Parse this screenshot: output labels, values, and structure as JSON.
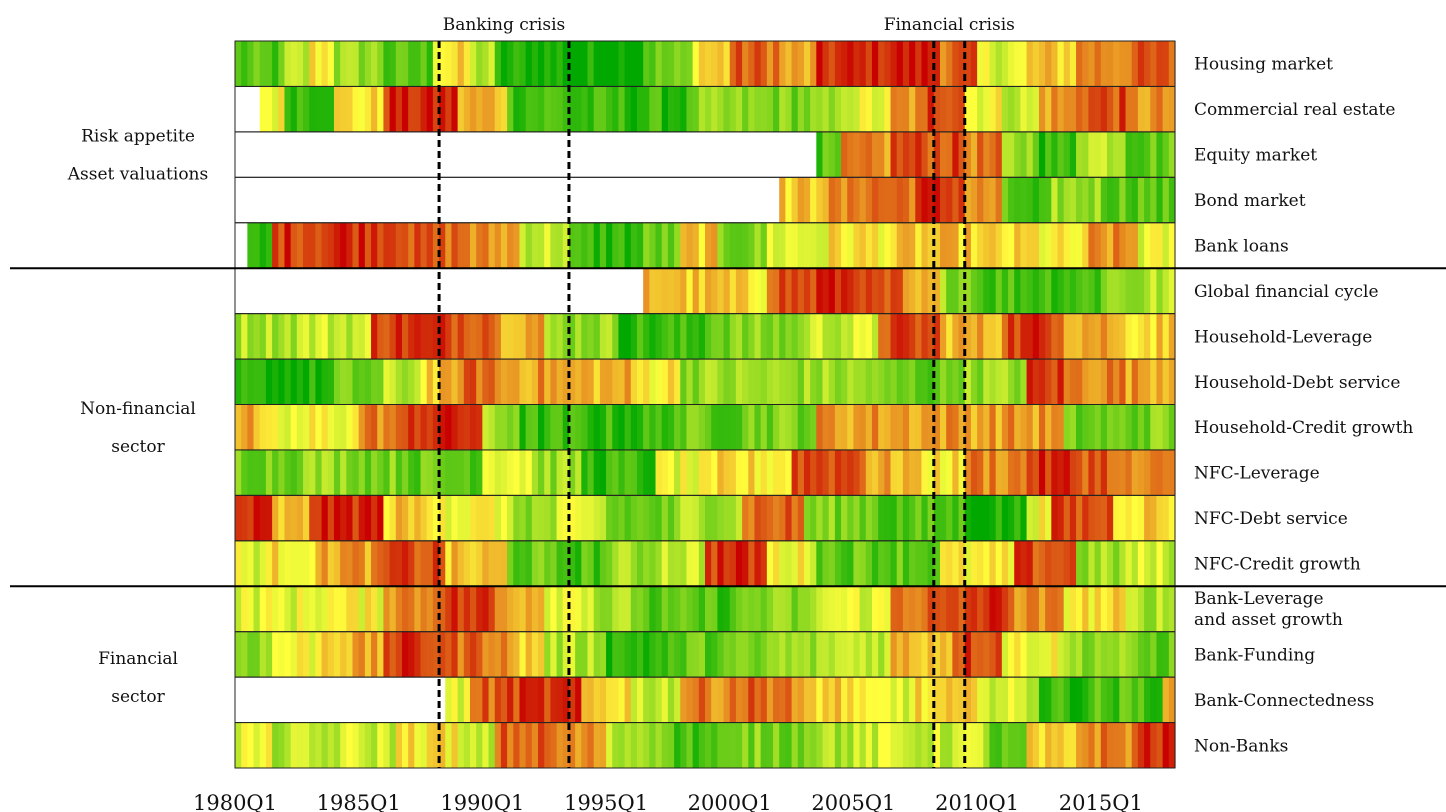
{
  "chart_data": {
    "type": "heatmap",
    "x": {
      "start_quarter": "1980Q1",
      "end_quarter": "2017Q4",
      "tick_labels": [
        "1980Q1",
        "1985Q1",
        "1990Q1",
        "1995Q1",
        "2000Q1",
        "2005Q1",
        "2010Q1",
        "2015Q1"
      ]
    },
    "crises": [
      {
        "label": "Banking crisis",
        "start": "1988Q2",
        "end": "1993Q3"
      },
      {
        "label": "Financial crisis",
        "start": "2008Q2",
        "end": "2009Q3"
      }
    ],
    "groups": [
      {
        "labels": [
          "Risk appetite",
          "Asset valuations"
        ],
        "rows": [
          0,
          1,
          2,
          3,
          4
        ]
      },
      {
        "labels": [
          "Non-financial",
          "sector"
        ],
        "rows": [
          5,
          6,
          7,
          8,
          9,
          10,
          11
        ]
      },
      {
        "labels": [
          "Financial",
          "sector"
        ],
        "rows": [
          12,
          13,
          14,
          15
        ]
      }
    ],
    "color_scale": {
      "low": "#00a800",
      "mid": "#ffff3c",
      "high": "#c80000"
    },
    "rows": [
      {
        "label": "Housing market",
        "data_start": "1980Q1",
        "segments": [
          [
            8,
            0.15
          ],
          [
            4,
            0.35
          ],
          [
            4,
            0.55
          ],
          [
            8,
            0.3
          ],
          [
            8,
            0.15
          ],
          [
            6,
            0.55
          ],
          [
            4,
            0.35
          ],
          [
            8,
            0.05
          ],
          [
            4,
            0.05
          ],
          [
            12,
            0.02
          ],
          [
            8,
            0.2
          ],
          [
            6,
            0.6
          ],
          [
            8,
            0.8
          ],
          [
            6,
            0.65
          ],
          [
            8,
            0.9
          ],
          [
            12,
            0.95
          ],
          [
            6,
            0.8
          ],
          [
            8,
            0.45
          ],
          [
            8,
            0.6
          ],
          [
            8,
            0.75
          ],
          [
            8,
            0.8
          ]
        ]
      },
      {
        "label": "Commercial real estate",
        "data_start": "1981Q1",
        "segments": [
          [
            4,
            0.5
          ],
          [
            8,
            0.15
          ],
          [
            8,
            0.55
          ],
          [
            12,
            0.92
          ],
          [
            8,
            0.65
          ],
          [
            10,
            0.15
          ],
          [
            8,
            0.1
          ],
          [
            12,
            0.1
          ],
          [
            10,
            0.25
          ],
          [
            14,
            0.25
          ],
          [
            8,
            0.45
          ],
          [
            6,
            0.7
          ],
          [
            6,
            0.9
          ],
          [
            6,
            0.5
          ],
          [
            6,
            0.4
          ],
          [
            6,
            0.7
          ],
          [
            8,
            0.85
          ],
          [
            8,
            0.7
          ],
          [
            8,
            0.6
          ],
          [
            8,
            0.55
          ]
        ]
      },
      {
        "label": "Equity market",
        "data_start": "2003Q3",
        "segments": [
          [
            4,
            0.15
          ],
          [
            8,
            0.7
          ],
          [
            12,
            0.85
          ],
          [
            6,
            0.75
          ],
          [
            6,
            0.3
          ],
          [
            6,
            0.1
          ],
          [
            8,
            0.4
          ],
          [
            8,
            0.2
          ],
          [
            8,
            0.3
          ],
          [
            8,
            0.25
          ],
          [
            6,
            0.3
          ]
        ]
      },
      {
        "label": "Bond market",
        "data_start": "2002Q1",
        "segments": [
          [
            6,
            0.6
          ],
          [
            6,
            0.7
          ],
          [
            10,
            0.8
          ],
          [
            8,
            0.9
          ],
          [
            6,
            0.7
          ],
          [
            4,
            0.15
          ],
          [
            4,
            0.05
          ],
          [
            8,
            0.3
          ],
          [
            8,
            0.2
          ],
          [
            8,
            0.15
          ],
          [
            8,
            0.25
          ],
          [
            8,
            0.3
          ]
        ]
      },
      {
        "label": "Bank loans",
        "data_start": "1980Q3",
        "segments": [
          [
            4,
            0.05
          ],
          [
            10,
            0.9
          ],
          [
            12,
            0.93
          ],
          [
            10,
            0.8
          ],
          [
            8,
            0.7
          ],
          [
            8,
            0.4
          ],
          [
            12,
            0.1
          ],
          [
            6,
            0.2
          ],
          [
            6,
            0.6
          ],
          [
            8,
            0.25
          ],
          [
            10,
            0.45
          ],
          [
            12,
            0.55
          ],
          [
            12,
            0.6
          ],
          [
            10,
            0.55
          ],
          [
            8,
            0.5
          ],
          [
            8,
            0.7
          ],
          [
            10,
            0.45
          ],
          [
            8,
            0.25
          ],
          [
            8,
            0.2
          ]
        ]
      },
      {
        "label": "Global financial cycle",
        "data_start": "1996Q3",
        "segments": [
          [
            6,
            0.65
          ],
          [
            8,
            0.6
          ],
          [
            6,
            0.55
          ],
          [
            8,
            0.85
          ],
          [
            8,
            0.93
          ],
          [
            6,
            0.8
          ],
          [
            6,
            0.6
          ],
          [
            6,
            0.3
          ],
          [
            8,
            0.15
          ],
          [
            12,
            0.15
          ],
          [
            8,
            0.3
          ],
          [
            8,
            0.35
          ]
        ]
      },
      {
        "label": "Household-Leverage",
        "data_start": "1980Q1",
        "segments": [
          [
            10,
            0.35
          ],
          [
            12,
            0.4
          ],
          [
            8,
            0.9
          ],
          [
            12,
            0.88
          ],
          [
            8,
            0.7
          ],
          [
            12,
            0.3
          ],
          [
            14,
            0.1
          ],
          [
            16,
            0.25
          ],
          [
            12,
            0.4
          ],
          [
            10,
            0.85
          ],
          [
            10,
            0.65
          ],
          [
            4,
            0.88
          ],
          [
            6,
            0.9
          ],
          [
            8,
            0.7
          ],
          [
            10,
            0.6
          ],
          [
            10,
            0.6
          ]
        ]
      },
      {
        "label": "Household-Debt service",
        "data_start": "1980Q1",
        "segments": [
          [
            16,
            0.05
          ],
          [
            8,
            0.2
          ],
          [
            6,
            0.35
          ],
          [
            6,
            0.6
          ],
          [
            6,
            0.8
          ],
          [
            10,
            0.7
          ],
          [
            12,
            0.65
          ],
          [
            8,
            0.55
          ],
          [
            16,
            0.3
          ],
          [
            16,
            0.3
          ],
          [
            12,
            0.2
          ],
          [
            12,
            0.3
          ],
          [
            6,
            0.88
          ],
          [
            10,
            0.75
          ],
          [
            10,
            0.7
          ],
          [
            8,
            0.85
          ],
          [
            8,
            0.9
          ]
        ]
      },
      {
        "label": "Household-Credit growth",
        "data_start": "1980Q1",
        "segments": [
          [
            4,
            0.65
          ],
          [
            8,
            0.45
          ],
          [
            8,
            0.5
          ],
          [
            8,
            0.75
          ],
          [
            12,
            0.93
          ],
          [
            6,
            0.3
          ],
          [
            12,
            0.1
          ],
          [
            12,
            0.1
          ],
          [
            12,
            0.2
          ],
          [
            12,
            0.25
          ],
          [
            14,
            0.7
          ],
          [
            10,
            0.7
          ],
          [
            10,
            0.7
          ],
          [
            6,
            0.7
          ],
          [
            12,
            0.2
          ],
          [
            14,
            0.25
          ]
        ]
      },
      {
        "label": "NFC-Leverage",
        "data_start": "1980Q1",
        "segments": [
          [
            10,
            0.25
          ],
          [
            10,
            0.3
          ],
          [
            8,
            0.25
          ],
          [
            12,
            0.2
          ],
          [
            8,
            0.5
          ],
          [
            8,
            0.3
          ],
          [
            12,
            0.1
          ],
          [
            10,
            0.45
          ],
          [
            12,
            0.55
          ],
          [
            12,
            0.88
          ],
          [
            8,
            0.65
          ],
          [
            8,
            0.55
          ],
          [
            10,
            0.75
          ],
          [
            8,
            0.9
          ],
          [
            6,
            0.85
          ],
          [
            10,
            0.7
          ],
          [
            10,
            0.65
          ]
        ]
      },
      {
        "label": "NFC-Debt service",
        "data_start": "1980Q1",
        "segments": [
          [
            6,
            0.9
          ],
          [
            6,
            0.6
          ],
          [
            12,
            0.93
          ],
          [
            10,
            0.6
          ],
          [
            10,
            0.5
          ],
          [
            8,
            0.3
          ],
          [
            8,
            0.4
          ],
          [
            12,
            0.2
          ],
          [
            10,
            0.35
          ],
          [
            10,
            0.8
          ],
          [
            12,
            0.25
          ],
          [
            14,
            0.15
          ],
          [
            10,
            0.05
          ],
          [
            4,
            0.5
          ],
          [
            10,
            0.85
          ],
          [
            10,
            0.6
          ],
          [
            10,
            0.4
          ],
          [
            8,
            0.35
          ]
        ]
      },
      {
        "label": "NFC-Credit growth",
        "data_start": "1980Q1",
        "segments": [
          [
            6,
            0.45
          ],
          [
            8,
            0.55
          ],
          [
            10,
            0.7
          ],
          [
            10,
            0.85
          ],
          [
            10,
            0.6
          ],
          [
            6,
            0.2
          ],
          [
            10,
            0.15
          ],
          [
            8,
            0.3
          ],
          [
            8,
            0.4
          ],
          [
            10,
            0.9
          ],
          [
            8,
            0.5
          ],
          [
            10,
            0.2
          ],
          [
            10,
            0.2
          ],
          [
            12,
            0.5
          ],
          [
            10,
            0.85
          ],
          [
            8,
            0.3
          ],
          [
            10,
            0.4
          ],
          [
            8,
            0.15
          ]
        ]
      },
      {
        "label": "Bank-Leverage and asset growth",
        "data_start": "1980Q1",
        "segments": [
          [
            12,
            0.45
          ],
          [
            12,
            0.5
          ],
          [
            8,
            0.75
          ],
          [
            10,
            0.88
          ],
          [
            8,
            0.7
          ],
          [
            8,
            0.5
          ],
          [
            8,
            0.3
          ],
          [
            16,
            0.15
          ],
          [
            12,
            0.25
          ],
          [
            12,
            0.45
          ],
          [
            12,
            0.8
          ],
          [
            8,
            0.9
          ],
          [
            8,
            0.7
          ],
          [
            10,
            0.55
          ],
          [
            8,
            0.35
          ],
          [
            8,
            0.2
          ]
        ]
      },
      {
        "label": "Bank-Funding",
        "data_start": "1980Q1",
        "segments": [
          [
            6,
            0.3
          ],
          [
            8,
            0.5
          ],
          [
            10,
            0.65
          ],
          [
            10,
            0.88
          ],
          [
            10,
            0.8
          ],
          [
            6,
            0.6
          ],
          [
            10,
            0.35
          ],
          [
            12,
            0.1
          ],
          [
            14,
            0.2
          ],
          [
            10,
            0.3
          ],
          [
            10,
            0.4
          ],
          [
            10,
            0.65
          ],
          [
            8,
            0.88
          ],
          [
            10,
            0.5
          ],
          [
            10,
            0.3
          ],
          [
            8,
            0.2
          ]
        ]
      },
      {
        "label": "Bank-Connectedness",
        "data_start": "1988Q3",
        "segments": [
          [
            4,
            0.45
          ],
          [
            6,
            0.8
          ],
          [
            12,
            0.88
          ],
          [
            8,
            0.6
          ],
          [
            8,
            0.4
          ],
          [
            8,
            0.75
          ],
          [
            10,
            0.8
          ],
          [
            10,
            0.6
          ],
          [
            10,
            0.45
          ],
          [
            12,
            0.55
          ],
          [
            8,
            0.4
          ],
          [
            8,
            0.1
          ],
          [
            12,
            0.15
          ],
          [
            10,
            0.6
          ],
          [
            8,
            0.35
          ]
        ]
      },
      {
        "label": "Non-Banks",
        "data_start": "1980Q1",
        "segments": [
          [
            6,
            0.45
          ],
          [
            10,
            0.35
          ],
          [
            10,
            0.4
          ],
          [
            10,
            0.55
          ],
          [
            6,
            0.35
          ],
          [
            10,
            0.8
          ],
          [
            8,
            0.7
          ],
          [
            10,
            0.35
          ],
          [
            12,
            0.15
          ],
          [
            10,
            0.25
          ],
          [
            10,
            0.35
          ],
          [
            12,
            0.4
          ],
          [
            8,
            0.4
          ],
          [
            6,
            0.15
          ],
          [
            8,
            0.55
          ],
          [
            10,
            0.75
          ],
          [
            10,
            0.92
          ]
        ]
      }
    ]
  }
}
